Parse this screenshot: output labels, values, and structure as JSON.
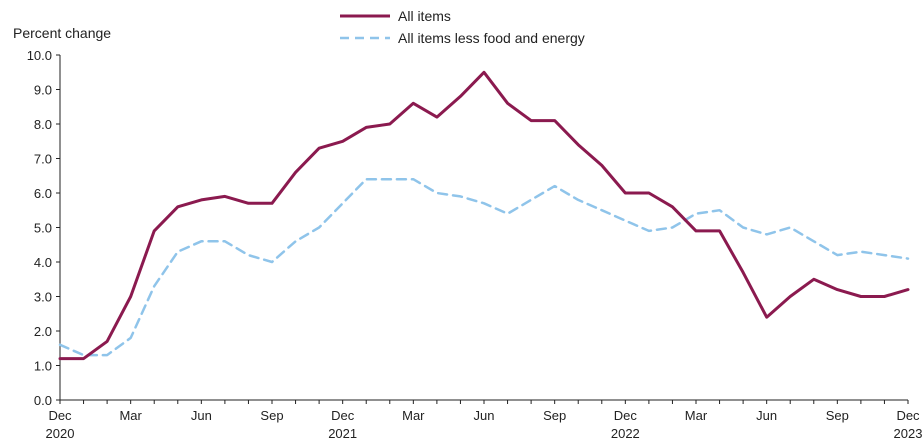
{
  "chart_data": {
    "type": "line",
    "ylabel": "Percent change",
    "ylim": [
      0,
      10
    ],
    "yticks": [
      "0.0",
      "1.0",
      "2.0",
      "3.0",
      "4.0",
      "5.0",
      "6.0",
      "7.0",
      "8.0",
      "9.0",
      "10.0"
    ],
    "x": [
      "2020-12",
      "2021-01",
      "2021-02",
      "2021-03",
      "2021-04",
      "2021-05",
      "2021-06",
      "2021-07",
      "2021-08",
      "2021-09",
      "2021-10",
      "2021-11",
      "2021-12",
      "2022-01",
      "2022-02",
      "2022-03",
      "2022-04",
      "2022-05",
      "2022-06",
      "2022-07",
      "2022-08",
      "2022-09",
      "2022-10",
      "2022-11",
      "2022-12",
      "2023-01",
      "2023-02",
      "2023-03",
      "2023-04",
      "2023-05",
      "2023-06",
      "2023-07",
      "2023-08",
      "2023-09",
      "2023-10",
      "2023-11",
      "2023-12"
    ],
    "xticks": [
      {
        "x": "2020-12",
        "label": "Dec",
        "year": "2020"
      },
      {
        "x": "2021-03",
        "label": "Mar",
        "year": ""
      },
      {
        "x": "2021-06",
        "label": "Jun",
        "year": ""
      },
      {
        "x": "2021-09",
        "label": "Sep",
        "year": ""
      },
      {
        "x": "2021-12",
        "label": "Dec",
        "year": "2021"
      },
      {
        "x": "2022-03",
        "label": "Mar",
        "year": ""
      },
      {
        "x": "2022-06",
        "label": "Jun",
        "year": ""
      },
      {
        "x": "2022-09",
        "label": "Sep",
        "year": ""
      },
      {
        "x": "2022-12",
        "label": "Dec",
        "year": "2022"
      },
      {
        "x": "2023-03",
        "label": "Mar",
        "year": ""
      },
      {
        "x": "2023-06",
        "label": "Jun",
        "year": ""
      },
      {
        "x": "2023-09",
        "label": "Sep",
        "year": ""
      },
      {
        "x": "2023-12",
        "label": "Dec",
        "year": "2023"
      }
    ],
    "series": [
      {
        "name": "All items",
        "color": "#8b1a4f",
        "style": "solid",
        "values": [
          1.2,
          1.2,
          1.7,
          3.0,
          4.9,
          5.6,
          5.8,
          5.9,
          5.7,
          5.7,
          6.6,
          7.3,
          7.5,
          7.9,
          8.0,
          8.6,
          8.2,
          8.8,
          9.5,
          8.6,
          8.1,
          8.1,
          7.4,
          6.8,
          6.0,
          6.0,
          5.6,
          4.9,
          4.9,
          3.7,
          2.4,
          3.0,
          3.5,
          3.2,
          3.0,
          3.0,
          3.2
        ]
      },
      {
        "name": "All items less food and energy",
        "color": "#8fc4ea",
        "style": "dashed",
        "values": [
          1.6,
          1.3,
          1.3,
          1.8,
          3.3,
          4.3,
          4.6,
          4.6,
          4.2,
          4.0,
          4.6,
          5.0,
          5.7,
          6.4,
          6.4,
          6.4,
          6.0,
          5.9,
          5.7,
          5.4,
          5.8,
          6.2,
          5.8,
          5.5,
          5.2,
          4.9,
          5.0,
          5.4,
          5.5,
          5.0,
          4.8,
          5.0,
          4.6,
          4.2,
          4.3,
          4.2,
          4.1
        ]
      }
    ],
    "grid": false,
    "legend": "top-center"
  }
}
